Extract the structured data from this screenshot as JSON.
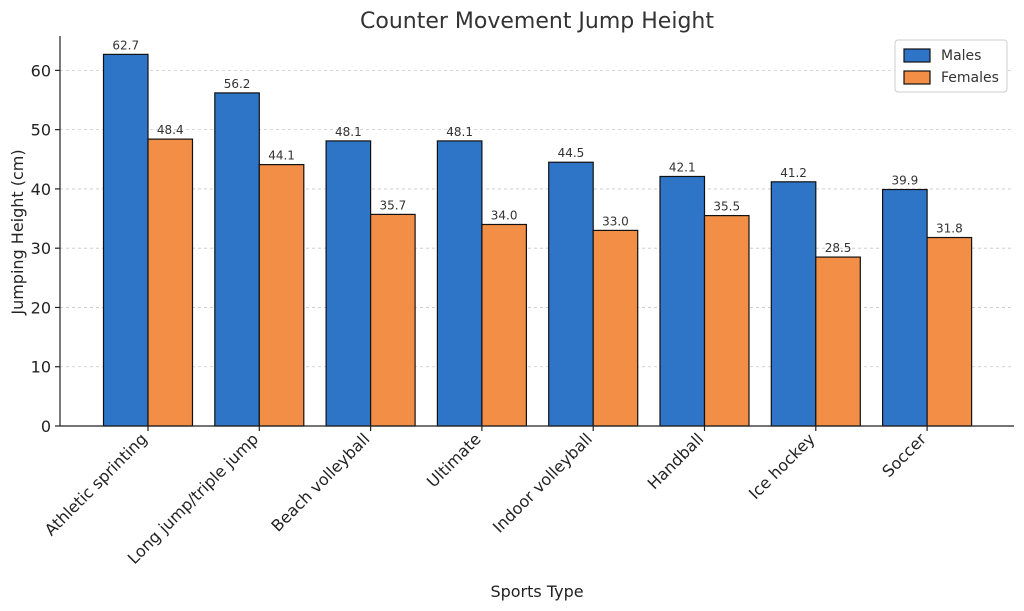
{
  "chart_data": {
    "type": "bar",
    "title": "Counter Movement Jump Height",
    "xlabel": "Sports Type",
    "ylabel": "Jumping Height (cm)",
    "categories": [
      "Athletic sprinting",
      "Long jump/triple jump",
      "Beach volleyball",
      "Ultimate",
      "Indoor volleyball",
      "Handball",
      "Ice hockey",
      "Soccer"
    ],
    "series": [
      {
        "name": "Males",
        "color": "#2e75c8",
        "values": [
          62.7,
          56.2,
          48.1,
          48.1,
          44.5,
          42.1,
          41.2,
          39.9
        ]
      },
      {
        "name": "Females",
        "color": "#f28e46",
        "values": [
          48.4,
          44.1,
          35.7,
          34.0,
          33.0,
          35.5,
          28.5,
          31.8
        ]
      }
    ],
    "ylim": [
      0,
      65.8
    ],
    "yticks": [
      0,
      10,
      20,
      30,
      40,
      50,
      60
    ],
    "grid": "y-dashed",
    "legend_position": "top-right",
    "value_format": "0.1f"
  }
}
